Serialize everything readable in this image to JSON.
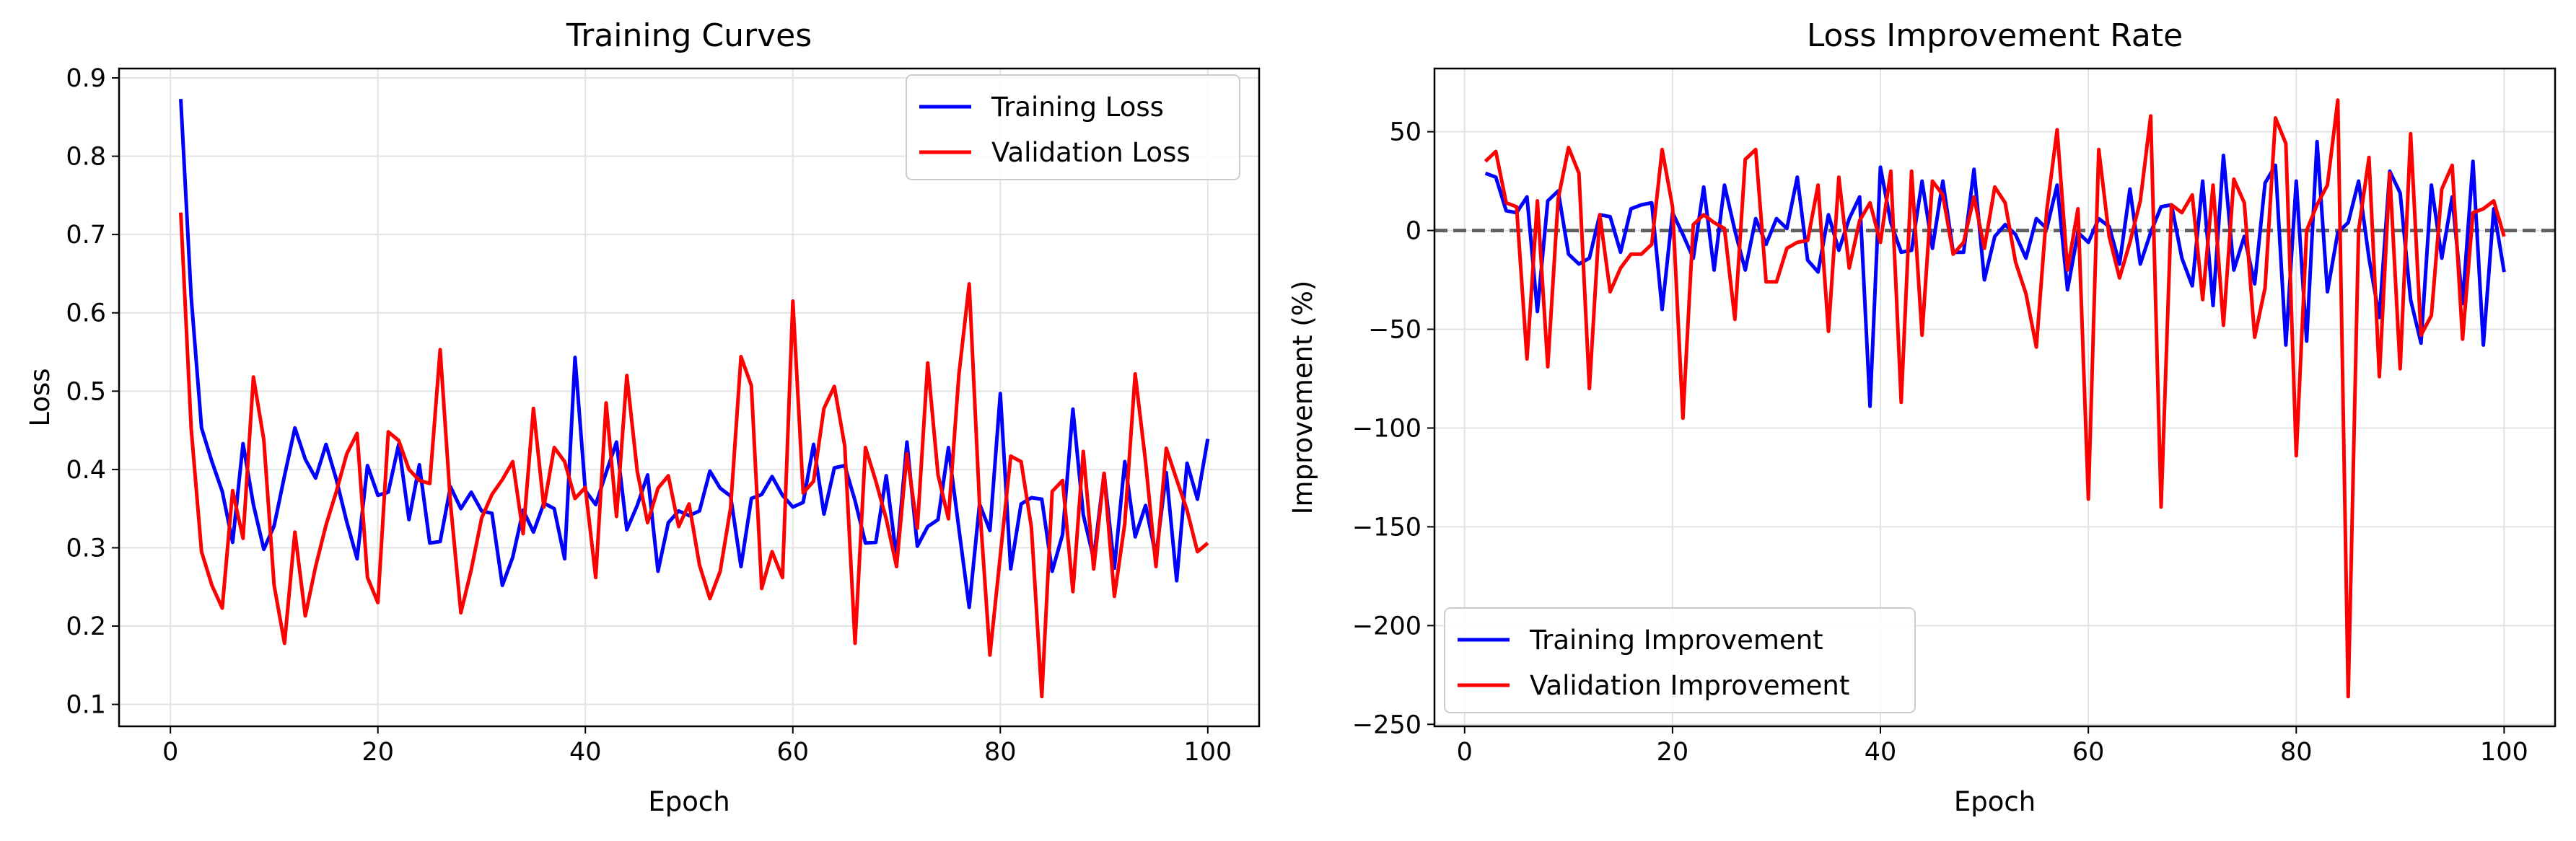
{
  "chart_data": [
    {
      "type": "line",
      "title": "Training Curves",
      "xlabel": "Epoch",
      "ylabel": "Loss",
      "xlim": [
        -4.95,
        104.95
      ],
      "ylim": [
        0.072,
        0.912
      ],
      "xticks": [
        0,
        20,
        40,
        60,
        80,
        100
      ],
      "yticks": [
        0.1,
        0.2,
        0.3,
        0.4,
        0.5,
        0.6,
        0.7,
        0.8,
        0.9
      ],
      "grid": true,
      "legend_position": "upper right",
      "x": [
        1,
        2,
        3,
        4,
        5,
        6,
        7,
        8,
        9,
        10,
        11,
        12,
        13,
        14,
        15,
        16,
        17,
        18,
        19,
        20,
        21,
        22,
        23,
        24,
        25,
        26,
        27,
        28,
        29,
        30,
        31,
        32,
        33,
        34,
        35,
        36,
        37,
        38,
        39,
        40,
        41,
        42,
        43,
        44,
        45,
        46,
        47,
        48,
        49,
        50,
        51,
        52,
        53,
        54,
        55,
        56,
        57,
        58,
        59,
        60,
        61,
        62,
        63,
        64,
        65,
        66,
        67,
        68,
        69,
        70,
        71,
        72,
        73,
        74,
        75,
        76,
        77,
        78,
        79,
        80,
        81,
        82,
        83,
        84,
        85,
        86,
        87,
        88,
        89,
        90,
        91,
        92,
        93,
        94,
        95,
        96,
        97,
        98,
        99,
        100
      ],
      "series": [
        {
          "name": "Training Loss",
          "color": "#0000ff",
          "values": [
            0.873,
            0.621,
            0.453,
            0.41,
            0.372,
            0.307,
            0.433,
            0.355,
            0.298,
            0.328,
            0.392,
            0.453,
            0.413,
            0.389,
            0.432,
            0.387,
            0.333,
            0.286,
            0.405,
            0.367,
            0.371,
            0.432,
            0.336,
            0.406,
            0.306,
            0.308,
            0.378,
            0.35,
            0.371,
            0.347,
            0.344,
            0.252,
            0.288,
            0.348,
            0.32,
            0.357,
            0.35,
            0.286,
            0.543,
            0.373,
            0.355,
            0.396,
            0.435,
            0.323,
            0.354,
            0.393,
            0.27,
            0.332,
            0.347,
            0.341,
            0.347,
            0.398,
            0.376,
            0.366,
            0.276,
            0.363,
            0.368,
            0.391,
            0.367,
            0.352,
            0.358,
            0.432,
            0.343,
            0.402,
            0.405,
            0.36,
            0.306,
            0.307,
            0.392,
            0.287,
            0.435,
            0.302,
            0.327,
            0.336,
            0.428,
            0.325,
            0.224,
            0.356,
            0.322,
            0.497,
            0.273,
            0.356,
            0.364,
            0.362,
            0.27,
            0.317,
            0.477,
            0.342,
            0.286,
            0.395,
            0.274,
            0.41,
            0.314,
            0.354,
            0.289,
            0.396,
            0.258,
            0.408,
            0.362,
            0.439
          ]
        },
        {
          "name": "Validation Loss",
          "color": "#ff0000",
          "values": [
            0.728,
            0.453,
            0.295,
            0.252,
            0.223,
            0.373,
            0.312,
            0.518,
            0.438,
            0.252,
            0.178,
            0.32,
            0.213,
            0.276,
            0.329,
            0.372,
            0.42,
            0.446,
            0.262,
            0.23,
            0.448,
            0.437,
            0.4,
            0.386,
            0.382,
            0.553,
            0.357,
            0.217,
            0.272,
            0.338,
            0.368,
            0.387,
            0.41,
            0.318,
            0.478,
            0.352,
            0.428,
            0.41,
            0.363,
            0.377,
            0.262,
            0.485,
            0.34,
            0.52,
            0.398,
            0.332,
            0.376,
            0.392,
            0.327,
            0.356,
            0.278,
            0.235,
            0.27,
            0.351,
            0.544,
            0.507,
            0.248,
            0.295,
            0.262,
            0.615,
            0.37,
            0.385,
            0.478,
            0.506,
            0.43,
            0.178,
            0.428,
            0.385,
            0.337,
            0.276,
            0.42,
            0.325,
            0.536,
            0.393,
            0.337,
            0.52,
            0.637,
            0.356,
            0.163,
            0.29,
            0.417,
            0.41,
            0.326,
            0.11,
            0.372,
            0.386,
            0.244,
            0.423,
            0.273,
            0.395,
            0.238,
            0.331,
            0.522,
            0.41,
            0.276,
            0.427,
            0.387,
            0.348,
            0.295,
            0.306
          ]
        }
      ]
    },
    {
      "type": "line",
      "title": "Loss Improvement Rate",
      "xlabel": "Epoch",
      "ylabel": "Improvement (%)",
      "xlim": [
        -2.9,
        104.9
      ],
      "ylim": [
        -251,
        82
      ],
      "xticks": [
        0,
        20,
        40,
        60,
        80,
        100
      ],
      "yticks": [
        50,
        0,
        -50,
        -100,
        -150,
        -200,
        -250
      ],
      "ytick_labels": [
        "50",
        "0",
        "−50",
        "−100",
        "−150",
        "−200",
        "−250"
      ],
      "grid": true,
      "legend_position": "lower left",
      "reference_line": {
        "y": 0,
        "style": "dashed",
        "color": "#606060"
      },
      "x": [
        2,
        3,
        4,
        5,
        6,
        7,
        8,
        9,
        10,
        11,
        12,
        13,
        14,
        15,
        16,
        17,
        18,
        19,
        20,
        21,
        22,
        23,
        24,
        25,
        26,
        27,
        28,
        29,
        30,
        31,
        32,
        33,
        34,
        35,
        36,
        37,
        38,
        39,
        40,
        41,
        42,
        43,
        44,
        45,
        46,
        47,
        48,
        49,
        50,
        51,
        52,
        53,
        54,
        55,
        56,
        57,
        58,
        59,
        60,
        61,
        62,
        63,
        64,
        65,
        66,
        67,
        68,
        69,
        70,
        71,
        72,
        73,
        74,
        75,
        76,
        77,
        78,
        79,
        80,
        81,
        82,
        83,
        84,
        85,
        86,
        87,
        88,
        89,
        90,
        91,
        92,
        93,
        94,
        95,
        96,
        97,
        98,
        99,
        100
      ],
      "series": [
        {
          "name": "Training Improvement",
          "color": "#0000ff",
          "values": [
            29,
            27,
            10,
            9,
            17,
            -41,
            15,
            20,
            -12,
            -17,
            -14,
            8,
            7,
            -11,
            11,
            13,
            14,
            -40,
            9,
            -2,
            -14,
            22,
            -20,
            23,
            0,
            -20,
            6,
            -7,
            6,
            1,
            27,
            -15,
            -21,
            8,
            -10,
            6,
            17,
            -89,
            32,
            4,
            -11,
            -10,
            25,
            -9,
            25,
            -11,
            -11,
            31,
            -25,
            -3,
            3,
            -2,
            -14,
            6,
            1,
            23,
            -30,
            -1,
            -6,
            6,
            2,
            -17,
            21,
            -17,
            -1,
            12,
            13,
            -14,
            -28,
            25,
            -38,
            38,
            -20,
            -3,
            -27,
            24,
            33,
            -58,
            25,
            -56,
            45,
            -31,
            -1,
            4,
            25,
            -14,
            -44,
            30,
            19,
            -35,
            -57,
            23,
            -14,
            17,
            -37,
            35,
            -58,
            11,
            -21
          ]
        },
        {
          "name": "Validation Improvement",
          "color": "#ff0000",
          "values": [
            35,
            40,
            14,
            12,
            -65,
            15,
            -69,
            16,
            42,
            29,
            -80,
            8,
            -31,
            -19,
            -12,
            -12,
            -7,
            41,
            12,
            -95,
            3,
            8,
            4,
            1,
            -45,
            36,
            41,
            -26,
            -26,
            -9,
            -6,
            -5,
            23,
            -51,
            27,
            -19,
            5,
            14,
            -6,
            30,
            -87,
            30,
            -53,
            25,
            18,
            -12,
            -6,
            17,
            -9,
            22,
            14,
            -16,
            -32,
            -59,
            10,
            51,
            -20,
            11,
            -136,
            41,
            -3,
            -24,
            -6,
            15,
            58,
            -140,
            13,
            9,
            18,
            -35,
            23,
            -48,
            26,
            14,
            -54,
            -29,
            57,
            44,
            -114,
            0,
            13,
            23,
            66,
            -236,
            0,
            37,
            -74,
            29,
            -70,
            49,
            -53,
            -43,
            21,
            33,
            -55,
            9,
            11,
            15,
            -3
          ]
        }
      ]
    }
  ]
}
